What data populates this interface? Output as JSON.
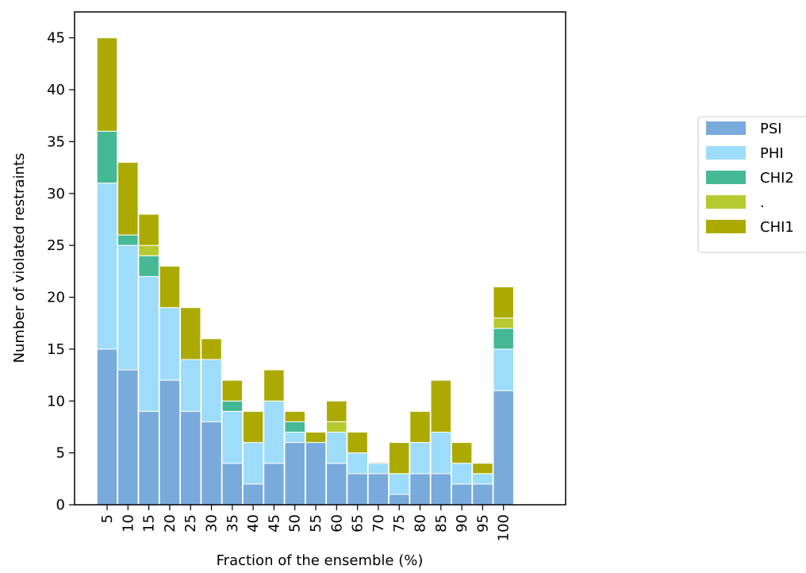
{
  "chart_data": {
    "type": "bar",
    "stacked": true,
    "title": "",
    "xlabel": "Fraction of the ensemble (%)",
    "ylabel": "Number of violated restraints",
    "ylim": [
      0,
      47.5
    ],
    "yticks": [
      0,
      5,
      10,
      15,
      20,
      25,
      30,
      35,
      40,
      45
    ],
    "grid": false,
    "legend_position": "right",
    "categories": [
      "5",
      "10",
      "15",
      "20",
      "25",
      "30",
      "35",
      "40",
      "45",
      "50",
      "55",
      "60",
      "65",
      "70",
      "75",
      "80",
      "85",
      "90",
      "95",
      "100"
    ],
    "series": [
      {
        "name": "PSI",
        "color": "#79aadc",
        "values": [
          15,
          13,
          9,
          12,
          9,
          8,
          4,
          2,
          4,
          6,
          6,
          4,
          3,
          3,
          1,
          3,
          3,
          2,
          2,
          11
        ]
      },
      {
        "name": "PHI",
        "color": "#9ddcfb",
        "values": [
          16,
          12,
          13,
          7,
          5,
          6,
          5,
          4,
          6,
          1,
          0,
          3,
          2,
          1,
          2,
          3,
          4,
          2,
          1,
          4
        ]
      },
      {
        "name": "CHI2",
        "color": "#45b895",
        "values": [
          5,
          1,
          2,
          0,
          0,
          0,
          1,
          0,
          0,
          1,
          0,
          0,
          0,
          0,
          0,
          0,
          0,
          0,
          0,
          2
        ]
      },
      {
        "name": ".",
        "color": "#b5c930",
        "values": [
          0,
          0,
          1,
          0,
          0,
          0,
          0,
          0,
          0,
          0,
          0,
          1,
          0,
          0,
          0,
          0,
          0,
          0,
          0,
          1
        ]
      },
      {
        "name": "CHI1",
        "color": "#acaa00",
        "values": [
          9,
          7,
          3,
          4,
          5,
          2,
          2,
          3,
          3,
          1,
          1,
          2,
          2,
          0.1,
          3,
          3,
          5,
          2,
          1,
          3
        ]
      }
    ]
  }
}
